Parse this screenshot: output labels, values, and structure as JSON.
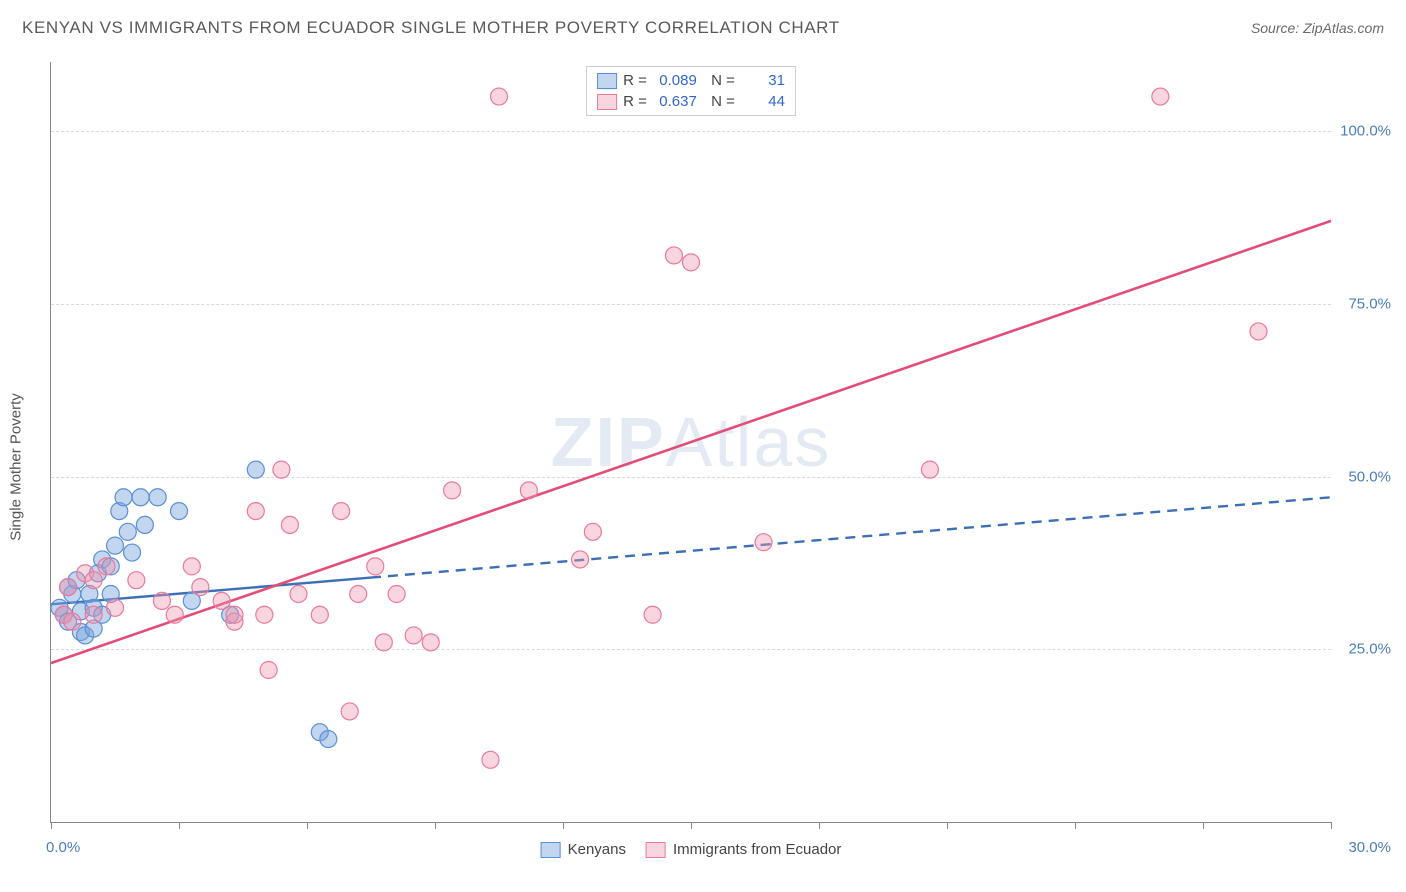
{
  "title": "KENYAN VS IMMIGRANTS FROM ECUADOR SINGLE MOTHER POVERTY CORRELATION CHART",
  "source": "Source: ZipAtlas.com",
  "watermark": {
    "part1": "ZIP",
    "part2": "Atlas"
  },
  "y_axis_title": "Single Mother Poverty",
  "chart": {
    "type": "scatter",
    "xlim": [
      0,
      30
    ],
    "ylim": [
      0,
      110
    ],
    "x_tick_positions": [
      0,
      3,
      6,
      9,
      12,
      15,
      18,
      21,
      24,
      27,
      30
    ],
    "y_ticks": [
      {
        "v": 25,
        "label": "25.0%"
      },
      {
        "v": 50,
        "label": "50.0%"
      },
      {
        "v": 75,
        "label": "75.0%"
      },
      {
        "v": 100,
        "label": "100.0%"
      }
    ],
    "x_label_min": "0.0%",
    "x_label_max": "30.0%",
    "background_color": "#ffffff",
    "grid_color": "#d9d9d9",
    "marker_radius": 8.5,
    "marker_stroke_width": 1.2,
    "series": [
      {
        "name": "Kenyans",
        "color_fill": "rgba(120,165,220,0.45)",
        "color_stroke": "#5b8fd6",
        "R": "0.089",
        "N": "31",
        "trend": {
          "x1": 0,
          "y1": 31.5,
          "x2": 30,
          "y2": 47,
          "solid_until_x": 7.5,
          "stroke": "#3d6fb5",
          "width": 2.4
        },
        "points": [
          [
            0.2,
            31
          ],
          [
            0.3,
            30
          ],
          [
            0.4,
            29
          ],
          [
            0.4,
            34
          ],
          [
            0.5,
            33
          ],
          [
            0.6,
            35
          ],
          [
            0.7,
            27.5
          ],
          [
            0.7,
            30.5
          ],
          [
            0.8,
            27
          ],
          [
            0.9,
            33
          ],
          [
            1.0,
            28
          ],
          [
            1.0,
            31
          ],
          [
            1.1,
            36
          ],
          [
            1.2,
            38
          ],
          [
            1.2,
            30
          ],
          [
            1.4,
            37
          ],
          [
            1.4,
            33
          ],
          [
            1.5,
            40
          ],
          [
            1.6,
            45
          ],
          [
            1.7,
            47
          ],
          [
            1.8,
            42
          ],
          [
            1.9,
            39
          ],
          [
            2.1,
            47
          ],
          [
            2.2,
            43
          ],
          [
            2.5,
            47
          ],
          [
            3.0,
            45
          ],
          [
            3.3,
            32
          ],
          [
            4.8,
            51
          ],
          [
            6.3,
            13
          ],
          [
            6.5,
            12
          ],
          [
            4.2,
            30
          ]
        ]
      },
      {
        "name": "Immigrants from Ecuador",
        "color_fill": "rgba(240,150,175,0.40)",
        "color_stroke": "#e97a9a",
        "R": "0.637",
        "N": "44",
        "trend": {
          "x1": 0,
          "y1": 23,
          "x2": 30,
          "y2": 87,
          "solid_until_x": 30,
          "stroke": "#e34d78",
          "width": 2.6
        },
        "points": [
          [
            0.3,
            30
          ],
          [
            0.4,
            34
          ],
          [
            0.5,
            29
          ],
          [
            0.8,
            36
          ],
          [
            1.0,
            30
          ],
          [
            1.0,
            35
          ],
          [
            1.3,
            37
          ],
          [
            1.5,
            31
          ],
          [
            2.0,
            35
          ],
          [
            2.6,
            32
          ],
          [
            2.9,
            30
          ],
          [
            3.3,
            37
          ],
          [
            3.5,
            34
          ],
          [
            4.0,
            32
          ],
          [
            4.3,
            29
          ],
          [
            4.3,
            30
          ],
          [
            4.8,
            45
          ],
          [
            5.0,
            30
          ],
          [
            5.6,
            43
          ],
          [
            5.8,
            33
          ],
          [
            6.3,
            30
          ],
          [
            6.8,
            45
          ],
          [
            7.2,
            33
          ],
          [
            7.6,
            37
          ],
          [
            7.8,
            26
          ],
          [
            8.1,
            33
          ],
          [
            8.5,
            27
          ],
          [
            9.4,
            48
          ],
          [
            10.3,
            9
          ],
          [
            10.5,
            105
          ],
          [
            11.2,
            48
          ],
          [
            12.4,
            38
          ],
          [
            12.7,
            42
          ],
          [
            14.1,
            30
          ],
          [
            14.6,
            82
          ],
          [
            15.0,
            81
          ],
          [
            16.7,
            40.5
          ],
          [
            20.6,
            51
          ],
          [
            7.0,
            16
          ],
          [
            8.9,
            26
          ],
          [
            5.1,
            22
          ],
          [
            26.0,
            105
          ],
          [
            28.3,
            71
          ],
          [
            5.4,
            51
          ]
        ]
      }
    ]
  }
}
